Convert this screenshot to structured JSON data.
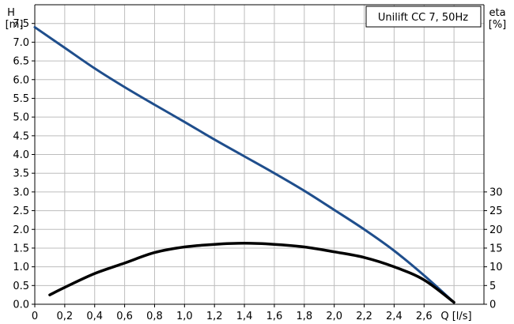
{
  "chart_data": {
    "type": "line",
    "title": "Unilift CC 7, 50Hz",
    "left_axis": {
      "label": "H",
      "unit": "[m]",
      "ylim": [
        0,
        8
      ],
      "ticks": [
        "0.0",
        "0.5",
        "1.0",
        "1.5",
        "2.0",
        "2.5",
        "3.0",
        "3.5",
        "4.0",
        "4.5",
        "5.0",
        "5.5",
        "6.0",
        "6.5",
        "7.0",
        "7.5"
      ]
    },
    "right_axis": {
      "label": "eta",
      "unit": "[%]",
      "ylim": [
        0,
        80
      ],
      "ticks": [
        "0",
        "5",
        "10",
        "15",
        "20",
        "25",
        "30"
      ]
    },
    "x_axis": {
      "label": "Q [l/s]",
      "xlim": [
        0,
        3.0
      ],
      "ticks": [
        "0",
        "0,2",
        "0,4",
        "0,6",
        "0,8",
        "1,0",
        "1,2",
        "1,4",
        "1,6",
        "1,8",
        "2,0",
        "2,2",
        "2,4",
        "2,6"
      ]
    },
    "grid": true,
    "series": [
      {
        "axis": "left",
        "color": "#1f4e8c",
        "x": [
          0,
          0.2,
          0.4,
          0.6,
          0.8,
          1.0,
          1.2,
          1.4,
          1.6,
          1.8,
          2.0,
          2.2,
          2.4,
          2.6,
          2.8
        ],
        "y": [
          7.4,
          6.85,
          6.3,
          5.8,
          5.33,
          4.87,
          4.4,
          3.95,
          3.5,
          3.03,
          2.52,
          2.0,
          1.43,
          0.77,
          0.05
        ]
      },
      {
        "axis": "right",
        "color": "#000000",
        "x": [
          0.1,
          0.2,
          0.4,
          0.6,
          0.8,
          1.0,
          1.2,
          1.4,
          1.6,
          1.8,
          2.0,
          2.2,
          2.4,
          2.6,
          2.8
        ],
        "y": [
          2.5,
          4.5,
          8.2,
          11.0,
          13.8,
          15.3,
          16.0,
          16.3,
          16.0,
          15.3,
          14.0,
          12.5,
          10.0,
          6.5,
          0.5
        ]
      }
    ]
  }
}
